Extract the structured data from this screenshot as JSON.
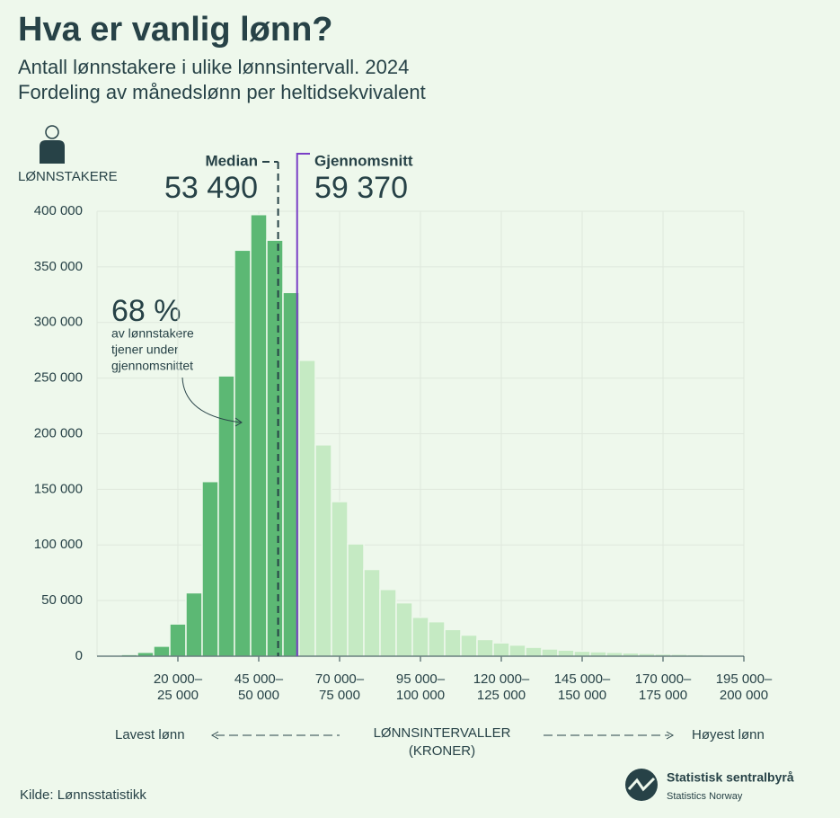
{
  "chart_data": {
    "type": "histogram",
    "title": "Hva er vanlig lønn?",
    "subtitle": [
      "Antall lønnstakere i ulike lønnsintervall. 2024",
      "Fordeling av månedslønn per heltidsekvivalent"
    ],
    "y_label": "LØNNSTAKERE",
    "x_label": [
      "LØNNSINTERVALLER",
      "(KRONER)"
    ],
    "x_left_note": "Lavest lønn",
    "x_right_note": "Høyest lønn",
    "bins": [
      0,
      5000,
      10000,
      15000,
      20000,
      25000,
      30000,
      35000,
      40000,
      45000,
      50000,
      55000,
      60000,
      65000,
      70000,
      75000,
      80000,
      85000,
      90000,
      95000,
      100000,
      105000,
      110000,
      115000,
      120000,
      125000,
      130000,
      135000,
      140000,
      145000,
      150000,
      155000,
      160000,
      165000,
      170000,
      175000,
      180000,
      185000,
      190000,
      195000
    ],
    "values": [
      0,
      1500,
      3500,
      9000,
      29000,
      57000,
      157000,
      252000,
      365000,
      397000,
      374000,
      327000,
      266000,
      190000,
      139000,
      101000,
      78000,
      60000,
      48000,
      35000,
      31000,
      24000,
      19000,
      15000,
      12000,
      10000,
      8000,
      6500,
      5500,
      4500,
      4000,
      3500,
      3000,
      2500,
      2000,
      1800,
      1500,
      1200,
      1000
    ],
    "color": "#5cb874",
    "color_above_mean": "#c5eac3",
    "median": {
      "name": "Median",
      "value": 53490,
      "label": "53 490",
      "color": "#274247"
    },
    "mean": {
      "name": "Gjennomsnitt",
      "value": 59370,
      "label": "59 370",
      "color": "#7a3fc6"
    },
    "annotation": {
      "value": {
        "value": 68,
        "label": "68 %"
      },
      "text": [
        "av lønnstakere",
        "tjener under",
        "gjennomsnittet"
      ]
    },
    "xlim": [
      -2500,
      197500
    ],
    "xticks": [
      {
        "value": 22500,
        "label": [
          "20 000–",
          "25 000"
        ]
      },
      {
        "value": 47500,
        "label": [
          "45 000–",
          "50 000"
        ]
      },
      {
        "value": 72500,
        "label": [
          "70 000–",
          "75 000"
        ]
      },
      {
        "value": 97500,
        "label": [
          "95 000–",
          "100 000"
        ]
      },
      {
        "value": 122500,
        "label": [
          "120 000–",
          "125 000"
        ]
      },
      {
        "value": 147500,
        "label": [
          "145 000–",
          "150 000"
        ]
      },
      {
        "value": 172500,
        "label": [
          "170 000–",
          "175 000"
        ]
      },
      {
        "value": 197500,
        "label": [
          "195 000–",
          "200 000"
        ]
      }
    ],
    "ylim": [
      0,
      400000
    ],
    "yticks": [
      {
        "value": 0,
        "label": "0"
      },
      {
        "value": 50000,
        "label": "50 000"
      },
      {
        "value": 100000,
        "label": "100 000"
      },
      {
        "value": 150000,
        "label": "150 000"
      },
      {
        "value": 200000,
        "label": "200 000"
      },
      {
        "value": 250000,
        "label": "250 000"
      },
      {
        "value": 300000,
        "label": "300 000"
      },
      {
        "value": 350000,
        "label": "350 000"
      },
      {
        "value": 400000,
        "label": "400 000"
      }
    ],
    "grid": true,
    "source": "Kilde: Lønnsstatistikk",
    "logo": [
      "Statistisk sentralbyrå",
      "Statistics Norway"
    ]
  }
}
